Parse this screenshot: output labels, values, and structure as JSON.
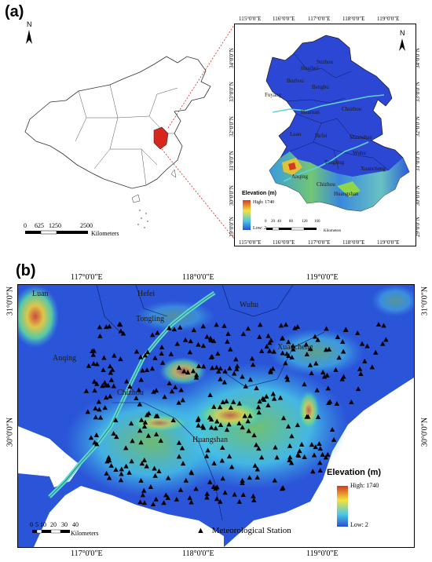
{
  "panel_a": {
    "label": "(a)",
    "china_map": {
      "north_label": "N",
      "scale": {
        "ticks": [
          "0",
          "625",
          "1250",
          "2500"
        ],
        "unit": "Kilometers"
      }
    },
    "inset": {
      "north_label": "N",
      "lon_ticks": [
        "115°0'0\"E",
        "116°0'0\"E",
        "117°0'0\"E",
        "118°0'0\"E",
        "119°0'0\"E"
      ],
      "lat_ticks": [
        "34°0'0\"N",
        "33°0'0\"N",
        "32°0'0\"N",
        "31°0'0\"N",
        "30°0'0\"N",
        "29°0'0\"N"
      ],
      "cities": [
        "Suzhou",
        "Huaibei",
        "Bozhou",
        "Bengbu",
        "Fuyang",
        "Chuzhou",
        "Huainan",
        "Hefei",
        "Luan",
        "Maanshan",
        "Wuhu",
        "Tongling",
        "Xuancheng",
        "Anqing",
        "Chizhou",
        "Huangshan"
      ],
      "legend": {
        "title": "Elevation (m)",
        "high": "High: 1740",
        "low": "Low: 2"
      },
      "scale": {
        "ticks": [
          "0",
          "20",
          "40",
          "80",
          "120",
          "160"
        ],
        "unit": "Kilometers"
      }
    }
  },
  "panel_b": {
    "label": "(b)",
    "lon_ticks": [
      "117°0'0\"E",
      "118°0'0\"E",
      "119°0'0\"E"
    ],
    "lat_ticks": [
      "31°0'0\"N",
      "30°0'0\"N"
    ],
    "cities": [
      "Luan",
      "Hefei",
      "Wuhu",
      "Tongling",
      "Anqing",
      "Xuancheng",
      "Chizhou",
      "Huangshan"
    ],
    "legend": {
      "title": "Elevation (m)",
      "high": "High: 1740",
      "low": "Low: 2"
    },
    "scale": {
      "ticks": [
        "0",
        "5",
        "10",
        "20",
        "30",
        "40"
      ],
      "unit": "Kilometers"
    },
    "station_legend": {
      "symbol": "▲",
      "label": "Meteorological Station"
    }
  },
  "colors": {
    "low_elevation": "#2a4fd0",
    "mid_elevation": "#49c8e6",
    "high_mid": "#f5e23a",
    "high_elevation": "#d33a22",
    "river": "#5fd6d0",
    "highlight_province": "#d9261c"
  }
}
